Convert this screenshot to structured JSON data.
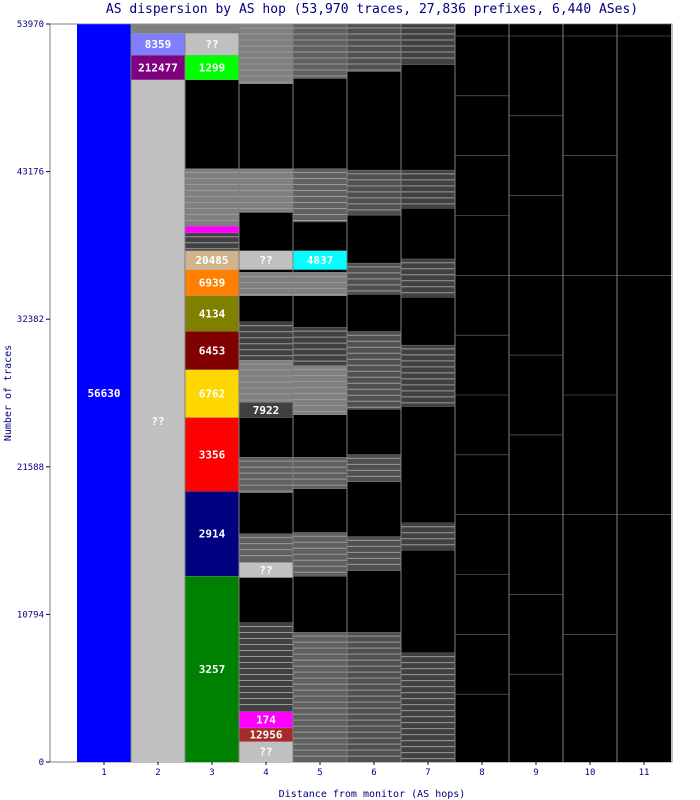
{
  "chart_data": {
    "type": "bar",
    "title": "AS dispersion by AS hop (53,970 traces, 27,836 prefixes, 6,440 ASes)",
    "xlabel": "Distance from monitor (AS hops)",
    "ylabel": "Number of traces",
    "categories": [
      "1",
      "2",
      "3",
      "4",
      "5",
      "6",
      "7",
      "8",
      "9",
      "10",
      "11"
    ],
    "ylim": [
      0,
      53970
    ],
    "yticks": [
      "0",
      "10794",
      "21588",
      "32382",
      "43176",
      "53970"
    ],
    "columns": [
      {
        "hop": "1",
        "segments": [
          {
            "label": "56630",
            "start": 0,
            "end": 53970,
            "color": "#0000ff",
            "text_color": "#ffffff"
          }
        ]
      },
      {
        "hop": "2",
        "segments": [
          {
            "label": "??",
            "start": 0,
            "end": 49900,
            "color": "#c0c0c0",
            "text_color": "#ffffff"
          },
          {
            "label": "212477",
            "start": 49900,
            "end": 51700,
            "color": "#800080",
            "text_color": "#ffffff"
          },
          {
            "label": "8359",
            "start": 51700,
            "end": 53300,
            "color": "#8080ff",
            "text_color": "#ffffff"
          },
          {
            "label": "",
            "start": 53300,
            "end": 53970,
            "color": "#808080",
            "text_color": "#ffffff"
          }
        ]
      },
      {
        "hop": "3",
        "segments": [
          {
            "label": "3257",
            "start": 0,
            "end": 13600,
            "color": "#008000",
            "text_color": "#ffffff"
          },
          {
            "label": "2914",
            "start": 13600,
            "end": 19800,
            "color": "#000080",
            "text_color": "#ffffff"
          },
          {
            "label": "3356",
            "start": 19800,
            "end": 25200,
            "color": "#ff0000",
            "text_color": "#ffffff"
          },
          {
            "label": "6762",
            "start": 25200,
            "end": 28700,
            "color": "#ffd700",
            "text_color": "#ffffff"
          },
          {
            "label": "6453",
            "start": 28700,
            "end": 31500,
            "color": "#800000",
            "text_color": "#ffffff"
          },
          {
            "label": "4134",
            "start": 31500,
            "end": 34100,
            "color": "#808000",
            "text_color": "#ffffff"
          },
          {
            "label": "6939",
            "start": 34100,
            "end": 36000,
            "color": "#ff8000",
            "text_color": "#ffffff"
          },
          {
            "label": "20485",
            "start": 36000,
            "end": 37400,
            "color": "#d2b48c",
            "text_color": "#ffffff"
          },
          {
            "label": "",
            "start": 37400,
            "end": 38700,
            "color": "#404040",
            "text_color": "#ffffff"
          },
          {
            "label": "",
            "start": 38700,
            "end": 39200,
            "color": "#ff00ff",
            "text_color": "#ffffff"
          },
          {
            "label": "",
            "start": 39200,
            "end": 43400,
            "color": "#808080",
            "text_color": "#ffffff"
          },
          {
            "label": "",
            "start": 43400,
            "end": 49900,
            "color": "#000000",
            "text_color": "#ffffff"
          },
          {
            "label": "1299",
            "start": 49900,
            "end": 51700,
            "color": "#00ff00",
            "text_color": "#ffffff"
          },
          {
            "label": "??",
            "start": 51700,
            "end": 53300,
            "color": "#c0c0c0",
            "text_color": "#ffffff"
          },
          {
            "label": "",
            "start": 53300,
            "end": 53970,
            "color": "#808080",
            "text_color": "#ffffff"
          }
        ]
      },
      {
        "hop": "4",
        "segments": [
          {
            "label": "??",
            "start": 0,
            "end": 1500,
            "color": "#c0c0c0",
            "text_color": "#ffffff"
          },
          {
            "label": "12956",
            "start": 1500,
            "end": 2500,
            "color": "#a52a2a",
            "text_color": "#ffffff"
          },
          {
            "label": "174",
            "start": 2500,
            "end": 3700,
            "color": "#ff00ff",
            "text_color": "#ffffff"
          },
          {
            "label": "",
            "start": 3700,
            "end": 10200,
            "color": "#404040",
            "text_color": "#ffffff"
          },
          {
            "label": "",
            "start": 10200,
            "end": 13500,
            "color": "#000000",
            "text_color": "#ffffff"
          },
          {
            "label": "??",
            "start": 13500,
            "end": 14600,
            "color": "#c0c0c0",
            "text_color": "#ffffff"
          },
          {
            "label": "",
            "start": 14600,
            "end": 16700,
            "color": "#606060",
            "text_color": "#ffffff"
          },
          {
            "label": "",
            "start": 16700,
            "end": 19700,
            "color": "#000000",
            "text_color": "#ffffff"
          },
          {
            "label": "",
            "start": 19700,
            "end": 22300,
            "color": "#606060",
            "text_color": "#ffffff"
          },
          {
            "label": "",
            "start": 22300,
            "end": 25200,
            "color": "#000000",
            "text_color": "#ffffff"
          },
          {
            "label": "7922",
            "start": 25200,
            "end": 26300,
            "color": "#404040",
            "text_color": "#ffffff"
          },
          {
            "label": "",
            "start": 26300,
            "end": 29400,
            "color": "#808080",
            "text_color": "#ffffff"
          },
          {
            "label": "",
            "start": 29400,
            "end": 32200,
            "color": "#404040",
            "text_color": "#ffffff"
          },
          {
            "label": "",
            "start": 32200,
            "end": 34100,
            "color": "#000000",
            "text_color": "#ffffff"
          },
          {
            "label": "",
            "start": 34100,
            "end": 35800,
            "color": "#808080",
            "text_color": "#ffffff"
          },
          {
            "label": "??",
            "start": 36000,
            "end": 37400,
            "color": "#c0c0c0",
            "text_color": "#ffffff"
          },
          {
            "label": "",
            "start": 37400,
            "end": 40200,
            "color": "#000000",
            "text_color": "#ffffff"
          },
          {
            "label": "",
            "start": 40200,
            "end": 43400,
            "color": "#808080",
            "text_color": "#ffffff"
          },
          {
            "label": "",
            "start": 43400,
            "end": 49600,
            "color": "#000000",
            "text_color": "#ffffff"
          },
          {
            "label": "",
            "start": 49600,
            "end": 53970,
            "color": "#808080",
            "text_color": "#ffffff"
          }
        ]
      },
      {
        "hop": "5",
        "segments": [
          {
            "label": "",
            "start": 0,
            "end": 9500,
            "color": "#606060",
            "text_color": "#ffffff"
          },
          {
            "label": "",
            "start": 9500,
            "end": 13600,
            "color": "#000000",
            "text_color": "#ffffff"
          },
          {
            "label": "",
            "start": 13600,
            "end": 16800,
            "color": "#606060",
            "text_color": "#ffffff"
          },
          {
            "label": "",
            "start": 16800,
            "end": 20000,
            "color": "#000000",
            "text_color": "#ffffff"
          },
          {
            "label": "",
            "start": 20000,
            "end": 22300,
            "color": "#606060",
            "text_color": "#ffffff"
          },
          {
            "label": "",
            "start": 22300,
            "end": 25400,
            "color": "#000000",
            "text_color": "#ffffff"
          },
          {
            "label": "",
            "start": 25400,
            "end": 29000,
            "color": "#808080",
            "text_color": "#ffffff"
          },
          {
            "label": "",
            "start": 29000,
            "end": 31800,
            "color": "#404040",
            "text_color": "#ffffff"
          },
          {
            "label": "",
            "start": 31800,
            "end": 34100,
            "color": "#000000",
            "text_color": "#ffffff"
          },
          {
            "label": "",
            "start": 34100,
            "end": 35800,
            "color": "#808080",
            "text_color": "#ffffff"
          },
          {
            "label": "4837",
            "start": 36000,
            "end": 37400,
            "color": "#00ffff",
            "text_color": "#ffffff"
          },
          {
            "label": "",
            "start": 37400,
            "end": 39500,
            "color": "#000000",
            "text_color": "#ffffff"
          },
          {
            "label": "",
            "start": 39500,
            "end": 43400,
            "color": "#606060",
            "text_color": "#ffffff"
          },
          {
            "label": "",
            "start": 43400,
            "end": 50000,
            "color": "#000000",
            "text_color": "#ffffff"
          },
          {
            "label": "",
            "start": 50000,
            "end": 53970,
            "color": "#606060",
            "text_color": "#ffffff"
          }
        ]
      },
      {
        "hop": "6",
        "segments": [
          {
            "label": "",
            "start": 0,
            "end": 9500,
            "color": "#505050",
            "text_color": "#ffffff"
          },
          {
            "label": "",
            "start": 9500,
            "end": 14000,
            "color": "#000000",
            "text_color": "#ffffff"
          },
          {
            "label": "",
            "start": 14000,
            "end": 16500,
            "color": "#505050",
            "text_color": "#ffffff"
          },
          {
            "label": "",
            "start": 16500,
            "end": 20500,
            "color": "#000000",
            "text_color": "#ffffff"
          },
          {
            "label": "",
            "start": 20500,
            "end": 22500,
            "color": "#505050",
            "text_color": "#ffffff"
          },
          {
            "label": "",
            "start": 22500,
            "end": 25800,
            "color": "#000000",
            "text_color": "#ffffff"
          },
          {
            "label": "",
            "start": 25800,
            "end": 31500,
            "color": "#505050",
            "text_color": "#ffffff"
          },
          {
            "label": "",
            "start": 31500,
            "end": 34200,
            "color": "#000000",
            "text_color": "#ffffff"
          },
          {
            "label": "",
            "start": 34200,
            "end": 36500,
            "color": "#505050",
            "text_color": "#ffffff"
          },
          {
            "label": "",
            "start": 36500,
            "end": 40000,
            "color": "#000000",
            "text_color": "#ffffff"
          },
          {
            "label": "",
            "start": 40000,
            "end": 43300,
            "color": "#505050",
            "text_color": "#ffffff"
          },
          {
            "label": "",
            "start": 43300,
            "end": 50500,
            "color": "#000000",
            "text_color": "#ffffff"
          },
          {
            "label": "",
            "start": 50500,
            "end": 53970,
            "color": "#505050",
            "text_color": "#ffffff"
          }
        ]
      },
      {
        "hop": "7",
        "segments": [
          {
            "label": "",
            "start": 0,
            "end": 8000,
            "color": "#404040",
            "text_color": "#ffffff"
          },
          {
            "label": "",
            "start": 8000,
            "end": 15500,
            "color": "#000000",
            "text_color": "#ffffff"
          },
          {
            "label": "",
            "start": 15500,
            "end": 17500,
            "color": "#404040",
            "text_color": "#ffffff"
          },
          {
            "label": "",
            "start": 17500,
            "end": 26000,
            "color": "#000000",
            "text_color": "#ffffff"
          },
          {
            "label": "",
            "start": 26000,
            "end": 30500,
            "color": "#404040",
            "text_color": "#ffffff"
          },
          {
            "label": "",
            "start": 30500,
            "end": 34000,
            "color": "#000000",
            "text_color": "#ffffff"
          },
          {
            "label": "",
            "start": 34000,
            "end": 36800,
            "color": "#404040",
            "text_color": "#ffffff"
          },
          {
            "label": "",
            "start": 36800,
            "end": 40500,
            "color": "#000000",
            "text_color": "#ffffff"
          },
          {
            "label": "",
            "start": 40500,
            "end": 43300,
            "color": "#404040",
            "text_color": "#ffffff"
          },
          {
            "label": "",
            "start": 43300,
            "end": 51000,
            "color": "#000000",
            "text_color": "#ffffff"
          },
          {
            "label": "",
            "start": 51000,
            "end": 53970,
            "color": "#404040",
            "text_color": "#ffffff"
          }
        ]
      },
      {
        "hop": "8",
        "segments": [
          {
            "label": "",
            "start": 0,
            "end": 53970,
            "color": "#000000",
            "text_color": "#ffffff"
          }
        ]
      },
      {
        "hop": "9",
        "segments": [
          {
            "label": "",
            "start": 0,
            "end": 53970,
            "color": "#000000",
            "text_color": "#ffffff"
          }
        ]
      },
      {
        "hop": "10",
        "segments": [
          {
            "label": "",
            "start": 0,
            "end": 53970,
            "color": "#000000",
            "text_color": "#ffffff"
          }
        ]
      },
      {
        "hop": "11",
        "segments": [
          {
            "label": "",
            "start": 0,
            "end": 53970,
            "color": "#000000",
            "text_color": "#ffffff"
          }
        ]
      }
    ]
  }
}
